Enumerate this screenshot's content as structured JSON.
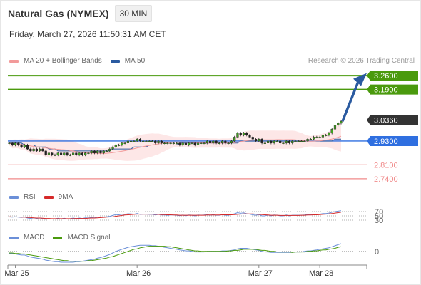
{
  "header": {
    "title": "Natural Gas (NYMEX)",
    "timeframe": "30 MIN",
    "datetime": "Friday, March 27, 2026 11:50:31 AM CET",
    "copyright": "Research © 2026 Trading Central"
  },
  "colors": {
    "resistance": "#4a9a0d",
    "pivot": "#2f6fe0",
    "support": "#f08a8a",
    "price_tag": "#333333",
    "arrow": "#2a5aa0",
    "ma20": "#f29a9a",
    "ma50": "#2a5aa0",
    "rsi": "#6b8fd8",
    "rsi_ma": "#d62a2a",
    "macd": "#6b8fd8",
    "macd_signal": "#4a9a0d"
  },
  "legend_main": [
    {
      "label": "MA 20 + Bollinger Bands",
      "color": "#f29a9a"
    },
    {
      "label": "MA 50",
      "color": "#2a5aa0"
    }
  ],
  "legend_rsi": [
    {
      "label": "RSI",
      "color": "#6b8fd8"
    },
    {
      "label": "9MA",
      "color": "#d62a2a"
    }
  ],
  "legend_macd": [
    {
      "label": "MACD",
      "color": "#6b8fd8"
    },
    {
      "label": "MACD Signal",
      "color": "#4a9a0d"
    }
  ],
  "chart_data": {
    "type": "line",
    "yrange": [
      2.7,
      3.3
    ],
    "levels": [
      {
        "value": 3.26,
        "label": "3.2600",
        "kind": "resistance"
      },
      {
        "value": 3.19,
        "label": "3.1900",
        "kind": "resistance"
      },
      {
        "value": 3.036,
        "label": "3.0360",
        "kind": "price"
      },
      {
        "value": 2.93,
        "label": "2.9300",
        "kind": "pivot"
      },
      {
        "value": 2.81,
        "label": "2.8100",
        "kind": "support"
      },
      {
        "value": 2.74,
        "label": "2.7400",
        "kind": "support"
      }
    ],
    "x_ticks": [
      "Mar 25",
      "Mar 26",
      "Mar 27",
      "Mar 28"
    ],
    "x_tick_positions": [
      2,
      42,
      82,
      102
    ],
    "x_count": 110,
    "close": [
      2.92,
      2.91,
      2.92,
      2.91,
      2.9,
      2.91,
      2.89,
      2.88,
      2.89,
      2.88,
      2.89,
      2.88,
      2.86,
      2.87,
      2.86,
      2.86,
      2.87,
      2.86,
      2.87,
      2.86,
      2.86,
      2.87,
      2.86,
      2.87,
      2.86,
      2.87,
      2.87,
      2.88,
      2.87,
      2.88,
      2.87,
      2.88,
      2.88,
      2.89,
      2.9,
      2.91,
      2.91,
      2.92,
      2.92,
      2.93,
      2.93,
      2.93,
      2.94,
      2.93,
      2.93,
      2.93,
      2.93,
      2.93,
      2.92,
      2.93,
      2.92,
      2.92,
      2.92,
      2.92,
      2.92,
      2.92,
      2.91,
      2.92,
      2.91,
      2.92,
      2.92,
      2.91,
      2.92,
      2.92,
      2.92,
      2.93,
      2.92,
      2.93,
      2.92,
      2.92,
      2.93,
      2.92,
      2.92,
      2.93,
      2.95,
      2.97,
      2.96,
      2.97,
      2.96,
      2.95,
      2.94,
      2.93,
      2.94,
      2.92,
      2.92,
      2.93,
      2.92,
      2.93,
      2.93,
      2.92,
      2.92,
      2.93,
      2.92,
      2.93,
      2.93,
      2.93,
      2.93,
      2.93,
      2.94,
      2.94,
      2.95,
      2.95,
      2.95,
      2.96,
      2.96,
      2.97,
      2.99,
      3.01,
      3.02,
      3.03
    ],
    "ma50": [
      2.92,
      2.92,
      2.92,
      2.92,
      2.92,
      2.91,
      2.91,
      2.91,
      2.91,
      2.9,
      2.9,
      2.9,
      2.9,
      2.89,
      2.89,
      2.89,
      2.88,
      2.88,
      2.88,
      2.88,
      2.88,
      2.88,
      2.88,
      2.88,
      2.88,
      2.88,
      2.88,
      2.88,
      2.88,
      2.88,
      2.88,
      2.88,
      2.88,
      2.88,
      2.89,
      2.89,
      2.89,
      2.89,
      2.89,
      2.89,
      2.89,
      2.9,
      2.9,
      2.9,
      2.9,
      2.9,
      2.91,
      2.91,
      2.91,
      2.91,
      2.91,
      2.91,
      2.91,
      2.91,
      2.91,
      2.91,
      2.92,
      2.92,
      2.92,
      2.92,
      2.92,
      2.92,
      2.92,
      2.92,
      2.92,
      2.92,
      2.92,
      2.92,
      2.92,
      2.92,
      2.92,
      2.92,
      2.92,
      2.92,
      2.92,
      2.92,
      2.93,
      2.93,
      2.93,
      2.93,
      2.93,
      2.93,
      2.93,
      2.93,
      2.93,
      2.93,
      2.93,
      2.93,
      2.93,
      2.93,
      2.93,
      2.93,
      2.93,
      2.93,
      2.93,
      2.93,
      2.93,
      2.93,
      2.93,
      2.93,
      2.93,
      2.93,
      2.93,
      2.93,
      2.93,
      2.93,
      2.93,
      2.94,
      2.94,
      2.94
    ],
    "rsi_range": [
      0,
      100
    ],
    "rsi_levels": [
      70,
      50,
      30
    ],
    "rsi": [
      45,
      44,
      46,
      44,
      43,
      45,
      40,
      38,
      41,
      38,
      40,
      37,
      34,
      38,
      35,
      36,
      39,
      36,
      39,
      36,
      37,
      40,
      37,
      40,
      38,
      41,
      40,
      43,
      41,
      45,
      42,
      45,
      46,
      48,
      52,
      56,
      55,
      58,
      57,
      60,
      59,
      58,
      61,
      57,
      58,
      58,
      57,
      57,
      54,
      57,
      54,
      54,
      53,
      54,
      54,
      53,
      51,
      54,
      50,
      54,
      53,
      50,
      54,
      53,
      54,
      56,
      53,
      56,
      53,
      53,
      56,
      53,
      53,
      56,
      60,
      65,
      62,
      64,
      60,
      58,
      55,
      53,
      56,
      50,
      50,
      54,
      50,
      54,
      53,
      50,
      50,
      54,
      50,
      53,
      53,
      53,
      53,
      54,
      57,
      56,
      58,
      58,
      58,
      61,
      61,
      63,
      67,
      70,
      72,
      74
    ],
    "rsi_ma": [
      46,
      45,
      45,
      45,
      44,
      44,
      43,
      42,
      41,
      40,
      40,
      39,
      38,
      38,
      37,
      37,
      37,
      37,
      37,
      37,
      37,
      37,
      38,
      38,
      38,
      38,
      39,
      40,
      40,
      41,
      42,
      43,
      44,
      45,
      46,
      48,
      50,
      52,
      54,
      55,
      56,
      57,
      58,
      58,
      58,
      58,
      58,
      58,
      57,
      57,
      56,
      56,
      55,
      55,
      54,
      54,
      53,
      53,
      53,
      53,
      53,
      53,
      53,
      53,
      53,
      54,
      54,
      54,
      54,
      54,
      55,
      55,
      55,
      55,
      56,
      57,
      58,
      59,
      59,
      59,
      59,
      58,
      57,
      56,
      55,
      54,
      53,
      53,
      53,
      52,
      52,
      52,
      52,
      52,
      52,
      52,
      53,
      53,
      54,
      54,
      55,
      55,
      56,
      57,
      58,
      59,
      61,
      63,
      65,
      67
    ],
    "macd": [
      -0.004,
      -0.004,
      -0.005,
      -0.006,
      -0.007,
      -0.007,
      -0.009,
      -0.011,
      -0.012,
      -0.013,
      -0.014,
      -0.015,
      -0.017,
      -0.018,
      -0.019,
      -0.02,
      -0.02,
      -0.021,
      -0.021,
      -0.021,
      -0.021,
      -0.021,
      -0.02,
      -0.02,
      -0.019,
      -0.018,
      -0.017,
      -0.016,
      -0.015,
      -0.013,
      -0.012,
      -0.01,
      -0.008,
      -0.006,
      -0.003,
      0.0,
      0.002,
      0.004,
      0.006,
      0.008,
      0.009,
      0.01,
      0.011,
      0.012,
      0.012,
      0.012,
      0.012,
      0.011,
      0.011,
      0.01,
      0.009,
      0.008,
      0.007,
      0.006,
      0.005,
      0.004,
      0.003,
      0.002,
      0.001,
      0.001,
      0.0,
      -0.001,
      -0.001,
      -0.001,
      -0.001,
      0.0,
      0.0,
      0.0,
      0.0,
      0.0,
      0.001,
      0.001,
      0.001,
      0.002,
      0.003,
      0.005,
      0.006,
      0.006,
      0.006,
      0.005,
      0.004,
      0.003,
      0.002,
      0.0,
      -0.001,
      -0.001,
      -0.002,
      -0.002,
      -0.002,
      -0.002,
      -0.002,
      -0.002,
      -0.002,
      -0.002,
      -0.001,
      -0.001,
      -0.001,
      0.0,
      0.001,
      0.001,
      0.002,
      0.003,
      0.004,
      0.005,
      0.006,
      0.007,
      0.009,
      0.011,
      0.013,
      0.015
    ],
    "macd_signal": [
      -0.003,
      -0.003,
      -0.004,
      -0.004,
      -0.005,
      -0.005,
      -0.006,
      -0.007,
      -0.008,
      -0.009,
      -0.01,
      -0.011,
      -0.012,
      -0.013,
      -0.014,
      -0.015,
      -0.016,
      -0.017,
      -0.018,
      -0.018,
      -0.019,
      -0.019,
      -0.019,
      -0.019,
      -0.019,
      -0.019,
      -0.018,
      -0.018,
      -0.017,
      -0.016,
      -0.015,
      -0.014,
      -0.013,
      -0.011,
      -0.01,
      -0.008,
      -0.006,
      -0.004,
      -0.002,
      0.0,
      0.002,
      0.004,
      0.005,
      0.007,
      0.008,
      0.009,
      0.01,
      0.01,
      0.01,
      0.01,
      0.01,
      0.01,
      0.009,
      0.009,
      0.008,
      0.007,
      0.006,
      0.005,
      0.004,
      0.003,
      0.002,
      0.001,
      0.001,
      0.0,
      0.0,
      0.0,
      0.0,
      0.0,
      0.0,
      0.0,
      0.0,
      0.0,
      0.001,
      0.001,
      0.002,
      0.002,
      0.003,
      0.004,
      0.004,
      0.004,
      0.004,
      0.004,
      0.003,
      0.002,
      0.002,
      0.001,
      0.0,
      0.0,
      -0.001,
      -0.001,
      -0.001,
      -0.001,
      -0.001,
      -0.002,
      -0.001,
      -0.001,
      -0.001,
      -0.001,
      0.0,
      0.0,
      0.001,
      0.001,
      0.002,
      0.003,
      0.003,
      0.004,
      0.005,
      0.006,
      0.008,
      0.009
    ],
    "macd_zero_label": "0",
    "rsi_level_labels": [
      "70",
      "50",
      "30"
    ]
  }
}
